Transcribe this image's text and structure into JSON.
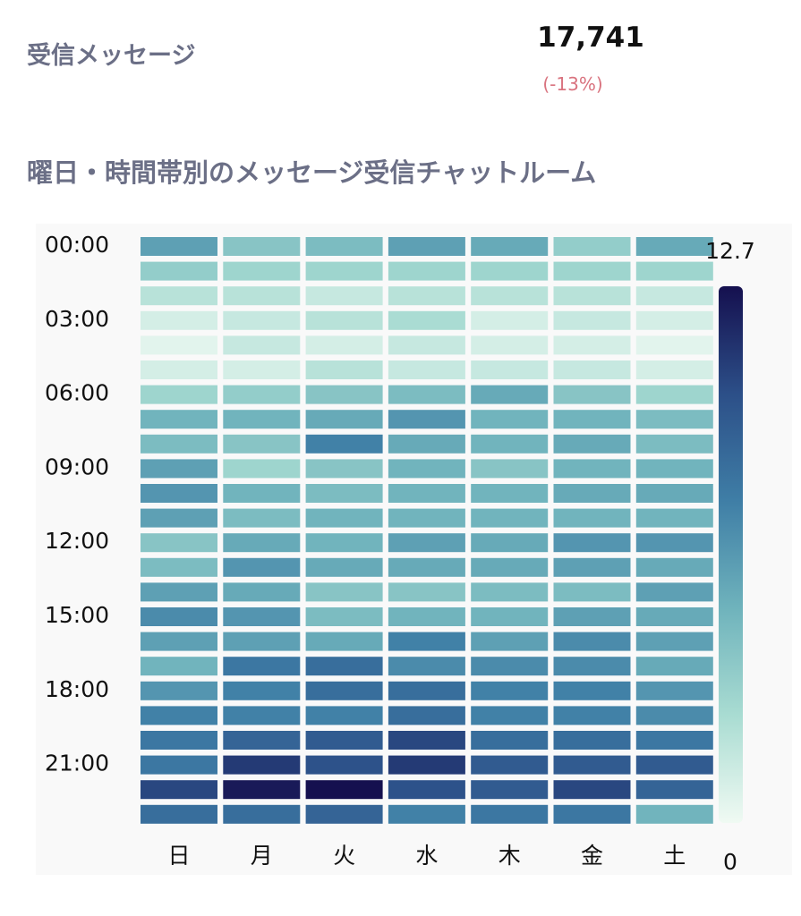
{
  "header": {
    "label": "受信メッセージ",
    "value": "17,741",
    "change": "(-13%)"
  },
  "chart_data": {
    "type": "heatmap",
    "title": "曜日・時間帯別のメッセージ受信チャットルーム",
    "x": [
      "日",
      "月",
      "火",
      "水",
      "木",
      "金",
      "土"
    ],
    "y": [
      "00:00",
      null,
      null,
      "03:00",
      null,
      null,
      "06:00",
      null,
      null,
      "09:00",
      null,
      null,
      "12:00",
      null,
      null,
      "15:00",
      null,
      null,
      "18:00",
      null,
      null,
      "21:00",
      null,
      null
    ],
    "values": [
      [
        6,
        4,
        4.5,
        6,
        5.5,
        3.5,
        5.5
      ],
      [
        3.5,
        3,
        3,
        3,
        3,
        3,
        3
      ],
      [
        2,
        2,
        1.5,
        2,
        2,
        2,
        1.5
      ],
      [
        1,
        1.5,
        2,
        2.5,
        1,
        1.5,
        1
      ],
      [
        0.5,
        1.5,
        1,
        1.5,
        1,
        1,
        0.5
      ],
      [
        1,
        1,
        2,
        1.5,
        1.5,
        1.5,
        1
      ],
      [
        3,
        3.5,
        4,
        4.5,
        5.5,
        4,
        3
      ],
      [
        5,
        5,
        5.5,
        6.5,
        5,
        5,
        4.5
      ],
      [
        4.5,
        4,
        7.5,
        5.5,
        5,
        5.5,
        4.5
      ],
      [
        6,
        3,
        4,
        5,
        4,
        5,
        5
      ],
      [
        6.5,
        5,
        4.5,
        5,
        5,
        5.5,
        5.5
      ],
      [
        6,
        4.5,
        5,
        5,
        5,
        5,
        5
      ],
      [
        4,
        5.5,
        5,
        6,
        5.5,
        6.5,
        6.5
      ],
      [
        4.5,
        6.5,
        5.5,
        5.5,
        5.5,
        6,
        5.5
      ],
      [
        6,
        5.5,
        4,
        4,
        4.5,
        4.5,
        6
      ],
      [
        7,
        6.5,
        4.5,
        5,
        5,
        6,
        5.5
      ],
      [
        6,
        6,
        5.5,
        7.5,
        6,
        7,
        6
      ],
      [
        5,
        8,
        8.5,
        7,
        7,
        7,
        5.5
      ],
      [
        6.5,
        7.5,
        8.5,
        8.5,
        7.5,
        7.5,
        6.5
      ],
      [
        7.5,
        7.5,
        7.5,
        8.5,
        7.5,
        7.5,
        7
      ],
      [
        8,
        9,
        9.5,
        10.5,
        8.5,
        8.5,
        8
      ],
      [
        8,
        11,
        10,
        11,
        9.5,
        9.5,
        9.5
      ],
      [
        10.5,
        12.3,
        12.7,
        10,
        9.5,
        10.5,
        9
      ],
      [
        8.5,
        8.5,
        9,
        7.5,
        8,
        8,
        5
      ]
    ],
    "zlim": [
      0,
      12.7
    ],
    "zticks": [
      0,
      12.7
    ],
    "colorscale": [
      "#f0faf3",
      "#a9dcd2",
      "#6fb3bc",
      "#3f7ea6",
      "#2c4f88",
      "#15104f"
    ]
  }
}
